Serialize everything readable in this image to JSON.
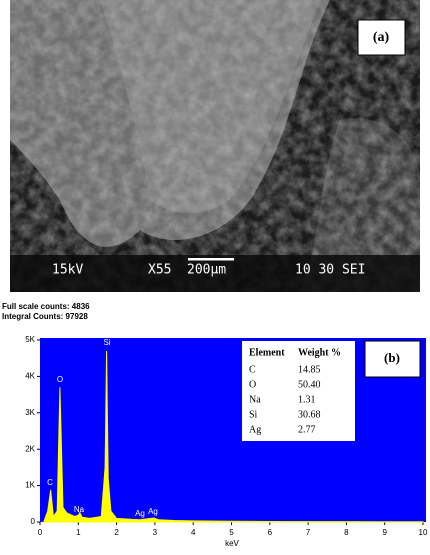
{
  "sem_image": {
    "panel_label": "(a)",
    "voltage": "15kV",
    "magnification": "X55",
    "scale_bar": "200μm",
    "info": "10 30 SEI"
  },
  "chart_data": {
    "type": "area",
    "panel_label": "(b)",
    "header": [
      "Full scale counts: 4836",
      "Integral Counts: 97928"
    ],
    "x_label": "keV",
    "x": [
      0.1,
      0.2,
      0.28,
      0.35,
      0.45,
      0.52,
      0.6,
      0.7,
      0.9,
      1.0,
      1.04,
      1.1,
      1.3,
      1.6,
      1.7,
      1.74,
      1.78,
      1.85,
      2.0,
      2.3,
      2.6,
      2.98,
      3.1,
      3.5,
      4,
      5,
      6,
      7,
      8,
      9,
      10
    ],
    "values": [
      0,
      300,
      880,
      150,
      300,
      3700,
      400,
      250,
      150,
      180,
      260,
      130,
      100,
      150,
      1500,
      4700,
      1200,
      300,
      100,
      80,
      60,
      110,
      60,
      40,
      30,
      20,
      15,
      10,
      10,
      5,
      5
    ],
    "color": "#ffff00",
    "background": "#0000ff",
    "xlim": [
      0,
      10
    ],
    "ylim": [
      0,
      5000
    ],
    "xticks": [
      0,
      1,
      2,
      3,
      4,
      5,
      6,
      7,
      8,
      9,
      10
    ],
    "yticks": [
      0,
      {
        "value": 1000,
        "label": "1K"
      },
      {
        "value": 2000,
        "label": "2K"
      },
      {
        "value": 3000,
        "label": "3K"
      },
      {
        "value": 4000,
        "label": "4K"
      },
      {
        "value": 5000,
        "label": "5K"
      }
    ],
    "peak_labels": [
      "C",
      "O",
      "Na",
      "Si",
      "Ag",
      "Ag"
    ],
    "table": {
      "headers": [
        "Element",
        "Weight %"
      ],
      "rows": [
        [
          "C",
          "14.85"
        ],
        [
          "O",
          "50.40"
        ],
        [
          "Na",
          "1.31"
        ],
        [
          "Si",
          "30.68"
        ],
        [
          "Ag",
          "2.77"
        ]
      ]
    }
  }
}
